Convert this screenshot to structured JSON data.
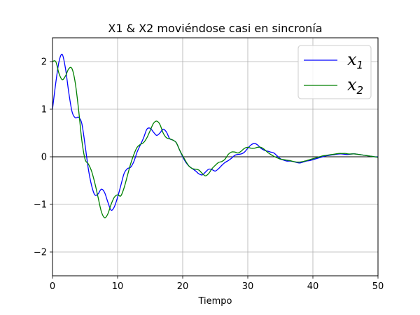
{
  "chart_data": {
    "type": "line",
    "title": "X1 & X2 moviéndose casi en sincronía",
    "xlabel": "Tiempo",
    "ylabel": "",
    "xlim": [
      0,
      50
    ],
    "ylim": [
      -2.5,
      2.5
    ],
    "xticks": [
      "0",
      "10",
      "20",
      "30",
      "40",
      "50"
    ],
    "yticks": [
      "−2",
      "−1",
      "0",
      "1",
      "2"
    ],
    "grid": true,
    "zero_line": true,
    "legend_position": "top-right",
    "series": [
      {
        "name": "x1",
        "legend_base": "x",
        "legend_sub": "1",
        "color": "#0000ff",
        "x": [
          0,
          0.5,
          1.0,
          1.5,
          2.0,
          2.5,
          3.0,
          3.5,
          4.0,
          4.5,
          5.0,
          5.5,
          6.0,
          6.5,
          7.0,
          7.5,
          8.0,
          8.5,
          9.0,
          9.5,
          10.0,
          10.5,
          11.0,
          11.5,
          12.0,
          12.5,
          13.0,
          13.5,
          14.0,
          14.5,
          15.0,
          15.5,
          16.0,
          16.5,
          17.0,
          17.5,
          18.0,
          18.5,
          19.0,
          19.5,
          20.0,
          20.5,
          21.0,
          21.5,
          22.0,
          22.5,
          23.0,
          23.5,
          24.0,
          24.5,
          25.0,
          25.5,
          26.0,
          26.5,
          27.0,
          27.5,
          28.0,
          28.5,
          29.0,
          29.5,
          30.0,
          30.5,
          31.0,
          31.5,
          32.0,
          32.5,
          33.0,
          33.5,
          34.0,
          34.5,
          35.0,
          35.5,
          36.0,
          36.5,
          37.0,
          37.5,
          38.0,
          38.5,
          39.0,
          39.5,
          40.0,
          40.5,
          41.0,
          41.5,
          42.0,
          42.5,
          43.0,
          43.5,
          44.0,
          44.5,
          45.0,
          45.5,
          46.0,
          46.5,
          47.0,
          47.5,
          48.0,
          48.5,
          49.0,
          49.5,
          50.0
        ],
        "y": [
          1.0,
          1.55,
          2.0,
          2.15,
          1.85,
          1.35,
          0.95,
          0.82,
          0.83,
          0.7,
          0.25,
          -0.25,
          -0.6,
          -0.8,
          -0.78,
          -0.68,
          -0.75,
          -0.95,
          -1.12,
          -1.05,
          -0.85,
          -0.6,
          -0.35,
          -0.25,
          -0.22,
          -0.1,
          0.1,
          0.25,
          0.4,
          0.58,
          0.6,
          0.52,
          0.45,
          0.5,
          0.58,
          0.52,
          0.38,
          0.35,
          0.3,
          0.15,
          0.0,
          -0.12,
          -0.2,
          -0.25,
          -0.3,
          -0.36,
          -0.38,
          -0.32,
          -0.26,
          -0.27,
          -0.3,
          -0.25,
          -0.18,
          -0.12,
          -0.08,
          -0.03,
          0.03,
          0.05,
          0.06,
          0.1,
          0.18,
          0.25,
          0.28,
          0.25,
          0.18,
          0.14,
          0.12,
          0.1,
          0.08,
          0.02,
          -0.04,
          -0.07,
          -0.09,
          -0.09,
          -0.1,
          -0.12,
          -0.13,
          -0.11,
          -0.09,
          -0.08,
          -0.06,
          -0.04,
          -0.02,
          0.0,
          0.02,
          0.03,
          0.04,
          0.05,
          0.06,
          0.06,
          0.05,
          0.05,
          0.06,
          0.06,
          0.05,
          0.04,
          0.03,
          0.02,
          0.01,
          0.0,
          0.0
        ]
      },
      {
        "name": "x2",
        "legend_base": "x",
        "legend_sub": "2",
        "color": "#008000",
        "x": [
          0,
          0.5,
          1.0,
          1.5,
          2.0,
          2.5,
          3.0,
          3.5,
          4.0,
          4.5,
          5.0,
          5.5,
          6.0,
          6.5,
          7.0,
          7.5,
          8.0,
          8.5,
          9.0,
          9.5,
          10.0,
          10.5,
          11.0,
          11.5,
          12.0,
          12.5,
          13.0,
          13.5,
          14.0,
          14.5,
          15.0,
          15.5,
          16.0,
          16.5,
          17.0,
          17.5,
          18.0,
          18.5,
          19.0,
          19.5,
          20.0,
          20.5,
          21.0,
          21.5,
          22.0,
          22.5,
          23.0,
          23.5,
          24.0,
          24.5,
          25.0,
          25.5,
          26.0,
          26.5,
          27.0,
          27.5,
          28.0,
          28.5,
          29.0,
          29.5,
          30.0,
          30.5,
          31.0,
          31.5,
          32.0,
          32.5,
          33.0,
          33.5,
          34.0,
          34.5,
          35.0,
          35.5,
          36.0,
          36.5,
          37.0,
          37.5,
          38.0,
          38.5,
          39.0,
          39.5,
          40.0,
          40.5,
          41.0,
          41.5,
          42.0,
          42.5,
          43.0,
          43.5,
          44.0,
          44.5,
          45.0,
          45.5,
          46.0,
          46.5,
          47.0,
          47.5,
          48.0,
          48.5,
          49.0,
          49.5,
          50.0
        ],
        "y": [
          2.0,
          2.0,
          1.75,
          1.62,
          1.7,
          1.85,
          1.85,
          1.55,
          1.0,
          0.35,
          -0.05,
          -0.15,
          -0.3,
          -0.55,
          -0.85,
          -1.15,
          -1.28,
          -1.2,
          -1.0,
          -0.85,
          -0.8,
          -0.82,
          -0.65,
          -0.4,
          -0.15,
          0.05,
          0.2,
          0.26,
          0.3,
          0.4,
          0.55,
          0.7,
          0.75,
          0.68,
          0.5,
          0.4,
          0.38,
          0.35,
          0.3,
          0.15,
          0.02,
          -0.1,
          -0.2,
          -0.25,
          -0.26,
          -0.28,
          -0.35,
          -0.4,
          -0.35,
          -0.25,
          -0.18,
          -0.12,
          -0.1,
          -0.05,
          0.05,
          0.1,
          0.1,
          0.08,
          0.12,
          0.18,
          0.2,
          0.18,
          0.18,
          0.2,
          0.2,
          0.16,
          0.1,
          0.05,
          0.01,
          -0.02,
          -0.05,
          -0.06,
          -0.07,
          -0.08,
          -0.1,
          -0.11,
          -0.11,
          -0.1,
          -0.08,
          -0.06,
          -0.04,
          -0.02,
          0.0,
          0.02,
          0.03,
          0.04,
          0.05,
          0.06,
          0.07,
          0.07,
          0.07,
          0.06,
          0.06,
          0.06,
          0.05,
          0.04,
          0.03,
          0.02,
          0.01,
          0.0,
          -0.01
        ]
      }
    ]
  }
}
